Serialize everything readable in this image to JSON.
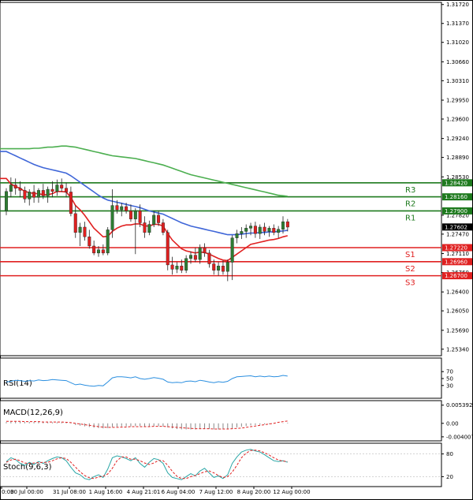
{
  "colors": {
    "bull": "#2e7d32",
    "bear": "#e02020",
    "wick": "#222222",
    "ema_fast": "#e02020",
    "ema_mid": "#3f66d8",
    "ema_slow": "#4caf50",
    "resistance": "#1e7a1e",
    "support": "#e02020",
    "rsi": "#2b8fe0",
    "macd_hist": "#888888",
    "macd_signal": "#e02020",
    "stoch_k": "#2aa6a6",
    "stoch_d": "#e02020",
    "current_tag": "#000000"
  },
  "chart_data": {
    "type": "candlestick",
    "main": {
      "ylim": [
        1.2522,
        1.3176
      ],
      "y_ticks": [
        "1.31720",
        "1.31370",
        "1.31020",
        "1.30660",
        "1.30310",
        "1.29950",
        "1.29600",
        "1.29240",
        "1.28890",
        "1.28530",
        "1.27820",
        "1.27470",
        "1.27110",
        "1.26760",
        "1.26400",
        "1.26050",
        "1.25690",
        "1.25340"
      ],
      "x_tick_labels": [
        "0:00",
        "30 Jul 00:00",
        "31 Jul 08:00",
        "1 Aug 16:00",
        "4 Aug 21:01",
        "6 Aug 04:00",
        "7 Aug 12:00",
        "8 Aug 20:00",
        "12 Aug 00:00"
      ],
      "current_price": "1.27602",
      "candles": [
        {
          "o": 1.279,
          "h": 1.2832,
          "l": 1.2782,
          "c": 1.2826
        },
        {
          "o": 1.2826,
          "h": 1.2852,
          "l": 1.2815,
          "c": 1.2838
        },
        {
          "o": 1.2838,
          "h": 1.285,
          "l": 1.282,
          "c": 1.2832
        },
        {
          "o": 1.2832,
          "h": 1.2845,
          "l": 1.2815,
          "c": 1.2828
        },
        {
          "o": 1.2828,
          "h": 1.2835,
          "l": 1.2805,
          "c": 1.2812
        },
        {
          "o": 1.2812,
          "h": 1.283,
          "l": 1.28,
          "c": 1.2825
        },
        {
          "o": 1.2825,
          "h": 1.2838,
          "l": 1.2805,
          "c": 1.2815
        },
        {
          "o": 1.2815,
          "h": 1.2832,
          "l": 1.2805,
          "c": 1.2828
        },
        {
          "o": 1.2828,
          "h": 1.284,
          "l": 1.2812,
          "c": 1.2818
        },
        {
          "o": 1.2818,
          "h": 1.2835,
          "l": 1.2805,
          "c": 1.283
        },
        {
          "o": 1.283,
          "h": 1.2845,
          "l": 1.2815,
          "c": 1.2826
        },
        {
          "o": 1.2826,
          "h": 1.2848,
          "l": 1.2818,
          "c": 1.2838
        },
        {
          "o": 1.2838,
          "h": 1.285,
          "l": 1.2825,
          "c": 1.2832
        },
        {
          "o": 1.2832,
          "h": 1.2842,
          "l": 1.2815,
          "c": 1.2825
        },
        {
          "o": 1.2825,
          "h": 1.2835,
          "l": 1.278,
          "c": 1.2785
        },
        {
          "o": 1.2785,
          "h": 1.28,
          "l": 1.274,
          "c": 1.275
        },
        {
          "o": 1.275,
          "h": 1.2768,
          "l": 1.2725,
          "c": 1.276
        },
        {
          "o": 1.276,
          "h": 1.277,
          "l": 1.2735,
          "c": 1.2742
        },
        {
          "o": 1.2742,
          "h": 1.2755,
          "l": 1.272,
          "c": 1.2725
        },
        {
          "o": 1.2725,
          "h": 1.2735,
          "l": 1.2708,
          "c": 1.2712
        },
        {
          "o": 1.2712,
          "h": 1.2725,
          "l": 1.2705,
          "c": 1.2718
        },
        {
          "o": 1.2718,
          "h": 1.2728,
          "l": 1.2708,
          "c": 1.2712
        },
        {
          "o": 1.2712,
          "h": 1.276,
          "l": 1.2708,
          "c": 1.2755
        },
        {
          "o": 1.2755,
          "h": 1.283,
          "l": 1.274,
          "c": 1.28
        },
        {
          "o": 1.28,
          "h": 1.281,
          "l": 1.2785,
          "c": 1.2792
        },
        {
          "o": 1.2792,
          "h": 1.2805,
          "l": 1.278,
          "c": 1.2798
        },
        {
          "o": 1.2798,
          "h": 1.2805,
          "l": 1.2785,
          "c": 1.279
        },
        {
          "o": 1.279,
          "h": 1.2802,
          "l": 1.277,
          "c": 1.2775
        },
        {
          "o": 1.2775,
          "h": 1.2795,
          "l": 1.271,
          "c": 1.279
        },
        {
          "o": 1.279,
          "h": 1.2802,
          "l": 1.276,
          "c": 1.2768
        },
        {
          "o": 1.2768,
          "h": 1.278,
          "l": 1.274,
          "c": 1.275
        },
        {
          "o": 1.275,
          "h": 1.2772,
          "l": 1.2745,
          "c": 1.2765
        },
        {
          "o": 1.2765,
          "h": 1.279,
          "l": 1.276,
          "c": 1.2782
        },
        {
          "o": 1.2782,
          "h": 1.279,
          "l": 1.2762,
          "c": 1.2768
        },
        {
          "o": 1.2768,
          "h": 1.2775,
          "l": 1.2745,
          "c": 1.275
        },
        {
          "o": 1.275,
          "h": 1.2755,
          "l": 1.268,
          "c": 1.269
        },
        {
          "o": 1.269,
          "h": 1.2705,
          "l": 1.2672,
          "c": 1.2682
        },
        {
          "o": 1.2682,
          "h": 1.2695,
          "l": 1.2675,
          "c": 1.2688
        },
        {
          "o": 1.2688,
          "h": 1.27,
          "l": 1.2675,
          "c": 1.268
        },
        {
          "o": 1.268,
          "h": 1.2708,
          "l": 1.2675,
          "c": 1.2702
        },
        {
          "o": 1.2702,
          "h": 1.2715,
          "l": 1.2692,
          "c": 1.2708
        },
        {
          "o": 1.2708,
          "h": 1.2722,
          "l": 1.2695,
          "c": 1.27
        },
        {
          "o": 1.27,
          "h": 1.2728,
          "l": 1.2692,
          "c": 1.2722
        },
        {
          "o": 1.2722,
          "h": 1.273,
          "l": 1.2705,
          "c": 1.2712
        },
        {
          "o": 1.2712,
          "h": 1.2718,
          "l": 1.2685,
          "c": 1.2692
        },
        {
          "o": 1.2692,
          "h": 1.27,
          "l": 1.2672,
          "c": 1.268
        },
        {
          "o": 1.268,
          "h": 1.2695,
          "l": 1.267,
          "c": 1.2688
        },
        {
          "o": 1.2688,
          "h": 1.2698,
          "l": 1.2672,
          "c": 1.2678
        },
        {
          "o": 1.2678,
          "h": 1.27,
          "l": 1.266,
          "c": 1.2695
        },
        {
          "o": 1.2695,
          "h": 1.2745,
          "l": 1.2662,
          "c": 1.274
        },
        {
          "o": 1.274,
          "h": 1.2755,
          "l": 1.273,
          "c": 1.2748
        },
        {
          "o": 1.2748,
          "h": 1.276,
          "l": 1.2738,
          "c": 1.2752
        },
        {
          "o": 1.2752,
          "h": 1.2765,
          "l": 1.274,
          "c": 1.2758
        },
        {
          "o": 1.2758,
          "h": 1.2768,
          "l": 1.2745,
          "c": 1.2762
        },
        {
          "o": 1.2762,
          "h": 1.277,
          "l": 1.274,
          "c": 1.2748
        },
        {
          "o": 1.2748,
          "h": 1.2765,
          "l": 1.2738,
          "c": 1.276
        },
        {
          "o": 1.276,
          "h": 1.2768,
          "l": 1.2745,
          "c": 1.2752
        },
        {
          "o": 1.2752,
          "h": 1.2762,
          "l": 1.2742,
          "c": 1.2758
        },
        {
          "o": 1.2758,
          "h": 1.2765,
          "l": 1.2745,
          "c": 1.275
        },
        {
          "o": 1.275,
          "h": 1.2762,
          "l": 1.274,
          "c": 1.2756
        },
        {
          "o": 1.2756,
          "h": 1.278,
          "l": 1.2748,
          "c": 1.277
        },
        {
          "o": 1.277,
          "h": 1.2775,
          "l": 1.2752,
          "c": 1.276
        }
      ],
      "ema_fast": [
        1.285,
        1.284,
        1.2835,
        1.2832,
        1.2826,
        1.2824,
        1.2822,
        1.2822,
        1.282,
        1.282,
        1.2822,
        1.2826,
        1.2826,
        1.2825,
        1.2815,
        1.28,
        1.2792,
        1.2782,
        1.277,
        1.2758,
        1.275,
        1.2742,
        1.2743,
        1.2752,
        1.2758,
        1.2762,
        1.2764,
        1.2764,
        1.2766,
        1.2766,
        1.2762,
        1.2762,
        1.2765,
        1.2765,
        1.2762,
        1.2748,
        1.2736,
        1.2728,
        1.272,
        1.2716,
        1.2714,
        1.2712,
        1.2714,
        1.2713,
        1.271,
        1.2706,
        1.2702,
        1.2699,
        1.2698,
        1.2704,
        1.271,
        1.2716,
        1.2722,
        1.2728,
        1.273,
        1.2732,
        1.2734,
        1.2736,
        1.2737,
        1.2739,
        1.2742,
        1.2744
      ],
      "ema_mid": [
        1.29,
        1.2896,
        1.2892,
        1.2888,
        1.2884,
        1.288,
        1.2876,
        1.2873,
        1.287,
        1.2868,
        1.2866,
        1.2864,
        1.2862,
        1.286,
        1.2855,
        1.2849,
        1.2843,
        1.2837,
        1.2831,
        1.2825,
        1.2819,
        1.2814,
        1.281,
        1.2808,
        1.2806,
        1.2804,
        1.2802,
        1.28,
        1.2798,
        1.2796,
        1.2793,
        1.279,
        1.2788,
        1.2786,
        1.2784,
        1.278,
        1.2776,
        1.2772,
        1.2768,
        1.2765,
        1.2762,
        1.276,
        1.2758,
        1.2756,
        1.2754,
        1.2752,
        1.275,
        1.2748,
        1.2746,
        1.2746,
        1.2746,
        1.2747,
        1.2748,
        1.2749,
        1.2749,
        1.275,
        1.275,
        1.2751,
        1.2751,
        1.2752,
        1.2753,
        1.2754
      ],
      "ema_slow": [
        1.2905,
        1.2905,
        1.2905,
        1.2905,
        1.2905,
        1.2905,
        1.2906,
        1.2906,
        1.2907,
        1.2908,
        1.2908,
        1.2909,
        1.291,
        1.291,
        1.2909,
        1.2908,
        1.2906,
        1.2904,
        1.2902,
        1.29,
        1.2898,
        1.2896,
        1.2894,
        1.2892,
        1.2891,
        1.289,
        1.2889,
        1.2888,
        1.2887,
        1.2885,
        1.2883,
        1.2881,
        1.2879,
        1.2877,
        1.2875,
        1.2872,
        1.2869,
        1.2866,
        1.2863,
        1.286,
        1.2857,
        1.2855,
        1.2853,
        1.2851,
        1.2849,
        1.2847,
        1.2845,
        1.2843,
        1.2841,
        1.2839,
        1.2837,
        1.2835,
        1.2833,
        1.2831,
        1.2829,
        1.2827,
        1.2825,
        1.2823,
        1.2821,
        1.2819,
        1.2818,
        1.2817
      ],
      "levels": [
        {
          "name": "R3",
          "value": 1.2842,
          "label": "1.28420",
          "kind": "resistance"
        },
        {
          "name": "R2",
          "value": 1.2816,
          "label": "1.28160",
          "kind": "resistance"
        },
        {
          "name": "R1",
          "value": 1.279,
          "label": "1.27900",
          "kind": "resistance"
        },
        {
          "name": "S1",
          "value": 1.2722,
          "label": "1.27220",
          "kind": "support"
        },
        {
          "name": "S2",
          "value": 1.2696,
          "label": "1.26960",
          "kind": "support"
        },
        {
          "name": "S3",
          "value": 1.267,
          "label": "1.26700",
          "kind": "support"
        }
      ]
    },
    "rsi": {
      "title": "RSI(14)",
      "ylim": [
        0,
        100
      ],
      "ticks": [
        "70",
        "50",
        "30"
      ],
      "values": [
        40,
        42,
        45,
        44,
        42,
        44,
        43,
        46,
        44,
        45,
        47,
        46,
        45,
        44,
        38,
        32,
        34,
        31,
        29,
        28,
        30,
        29,
        40,
        52,
        55,
        55,
        54,
        52,
        55,
        50,
        48,
        50,
        53,
        51,
        48,
        40,
        38,
        39,
        38,
        42,
        43,
        41,
        45,
        43,
        40,
        38,
        41,
        39,
        42,
        50,
        55,
        56,
        57,
        58,
        55,
        57,
        55,
        57,
        55,
        56,
        59,
        57
      ]
    },
    "macd": {
      "title": "MACD(12,26,9)",
      "ticks": [
        "0.005392",
        "0.00",
        "-0.004007"
      ],
      "ylim": [
        -0.0045,
        0.0058
      ],
      "histogram": [
        0.0004,
        0.0005,
        0.0005,
        0.0005,
        0.0004,
        0.0004,
        0.0004,
        0.0004,
        0.0003,
        0.0003,
        0.0003,
        0.0003,
        0.0003,
        0.0002,
        -0.0001,
        -0.0005,
        -0.0007,
        -0.0009,
        -0.0011,
        -0.0013,
        -0.0014,
        -0.0015,
        -0.0014,
        -0.0011,
        -0.001,
        -0.0009,
        -0.0009,
        -0.0009,
        -0.0008,
        -0.0008,
        -0.0009,
        -0.0009,
        -0.0008,
        -0.0008,
        -0.0009,
        -0.0012,
        -0.0015,
        -0.0017,
        -0.0018,
        -0.0018,
        -0.0018,
        -0.0018,
        -0.0017,
        -0.0017,
        -0.0017,
        -0.0018,
        -0.0018,
        -0.0018,
        -0.0018,
        -0.0015,
        -0.0012,
        -0.001,
        -0.0008,
        -0.0006,
        -0.0005,
        -0.0004,
        -0.0003,
        -0.0002,
        -0.0001,
        0.0,
        0.0001,
        0.0002
      ],
      "signal": [
        0.0006,
        0.0006,
        0.0006,
        0.0006,
        0.0005,
        0.0005,
        0.0005,
        0.0005,
        0.0004,
        0.0004,
        0.0004,
        0.0004,
        0.0004,
        0.0003,
        0.0002,
        0.0,
        -0.0002,
        -0.0004,
        -0.0006,
        -0.0008,
        -0.001,
        -0.0011,
        -0.0012,
        -0.0012,
        -0.0012,
        -0.0011,
        -0.0011,
        -0.001,
        -0.001,
        -0.001,
        -0.001,
        -0.001,
        -0.0009,
        -0.0009,
        -0.0009,
        -0.001,
        -0.0011,
        -0.0012,
        -0.0013,
        -0.0014,
        -0.0015,
        -0.0016,
        -0.0016,
        -0.0016,
        -0.0016,
        -0.0017,
        -0.0017,
        -0.0017,
        -0.0017,
        -0.0016,
        -0.0015,
        -0.0014,
        -0.0012,
        -0.001,
        -0.0008,
        -0.0006,
        -0.0004,
        -0.0002,
        0.0,
        0.0003,
        0.0005,
        0.0007
      ]
    },
    "stoch": {
      "title": "Stoch(9,6,3)",
      "ylim": [
        0,
        100
      ],
      "ticks": [
        "80",
        "20"
      ],
      "k": [
        60,
        70,
        65,
        55,
        50,
        58,
        52,
        60,
        55,
        62,
        68,
        72,
        70,
        62,
        45,
        30,
        25,
        15,
        12,
        20,
        25,
        18,
        40,
        70,
        75,
        72,
        68,
        62,
        70,
        55,
        45,
        58,
        68,
        65,
        55,
        30,
        18,
        15,
        12,
        20,
        28,
        22,
        35,
        42,
        30,
        18,
        22,
        15,
        25,
        55,
        72,
        85,
        90,
        92,
        88,
        85,
        78,
        70,
        62,
        60,
        62,
        58
      ],
      "d": [
        58,
        64,
        66,
        62,
        56,
        55,
        56,
        57,
        58,
        58,
        62,
        67,
        70,
        68,
        58,
        45,
        33,
        23,
        17,
        15,
        19,
        21,
        27,
        42,
        62,
        72,
        72,
        66,
        66,
        62,
        56,
        52,
        56,
        63,
        62,
        50,
        34,
        21,
        15,
        15,
        20,
        23,
        28,
        33,
        35,
        30,
        23,
        18,
        20,
        32,
        50,
        70,
        82,
        89,
        90,
        88,
        83,
        77,
        70,
        64,
        61,
        60
      ]
    }
  }
}
